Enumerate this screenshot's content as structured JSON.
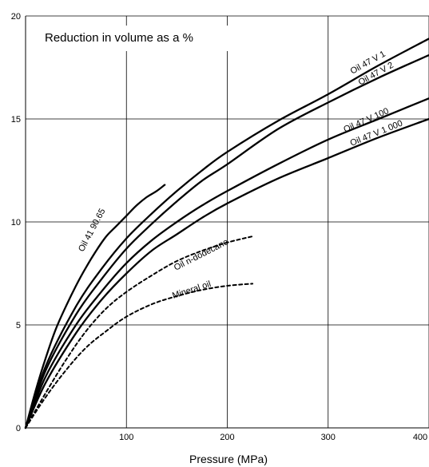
{
  "chart_data": {
    "type": "line",
    "title": "",
    "annotation": "Reduction in volume as a %",
    "xlabel": "Pressure (MPa)",
    "ylabel": "",
    "xlim": [
      0,
      400
    ],
    "ylim": [
      0,
      20
    ],
    "x_ticks": [
      "100",
      "200",
      "300",
      "400"
    ],
    "y_ticks": [
      "0",
      "5",
      "10",
      "15",
      "20"
    ],
    "grid": true,
    "series": [
      {
        "name": "Oil 41 90.65",
        "style": "solid",
        "points": [
          [
            0,
            0
          ],
          [
            10,
            1.8
          ],
          [
            20,
            3.4
          ],
          [
            30,
            4.8
          ],
          [
            40,
            5.9
          ],
          [
            50,
            6.9
          ],
          [
            60,
            7.8
          ],
          [
            70,
            8.6
          ],
          [
            80,
            9.3
          ],
          [
            90,
            9.8
          ],
          [
            100,
            10.3
          ],
          [
            110,
            10.8
          ],
          [
            120,
            11.2
          ],
          [
            130,
            11.5
          ],
          [
            138,
            11.8
          ]
        ]
      },
      {
        "name": "Oil 47 V 1",
        "style": "solid",
        "points": [
          [
            0,
            0
          ],
          [
            20,
            3.0
          ],
          [
            50,
            5.9
          ],
          [
            75,
            7.7
          ],
          [
            100,
            9.2
          ],
          [
            125,
            10.4
          ],
          [
            150,
            11.5
          ],
          [
            175,
            12.5
          ],
          [
            200,
            13.4
          ],
          [
            250,
            14.9
          ],
          [
            300,
            16.2
          ],
          [
            350,
            17.6
          ],
          [
            400,
            18.9
          ]
        ]
      },
      {
        "name": "Oil 47 V 2",
        "style": "solid",
        "points": [
          [
            0,
            0
          ],
          [
            20,
            2.8
          ],
          [
            50,
            5.5
          ],
          [
            75,
            7.2
          ],
          [
            100,
            8.7
          ],
          [
            125,
            9.9
          ],
          [
            150,
            11.0
          ],
          [
            175,
            12.0
          ],
          [
            200,
            12.8
          ],
          [
            250,
            14.5
          ],
          [
            300,
            15.8
          ],
          [
            350,
            17.0
          ],
          [
            400,
            18.1
          ]
        ]
      },
      {
        "name": "Oil 47 V 100",
        "style": "solid",
        "points": [
          [
            0,
            0
          ],
          [
            20,
            2.5
          ],
          [
            50,
            5.0
          ],
          [
            75,
            6.6
          ],
          [
            100,
            8.0
          ],
          [
            125,
            9.1
          ],
          [
            150,
            10.0
          ],
          [
            175,
            10.8
          ],
          [
            200,
            11.5
          ],
          [
            250,
            12.8
          ],
          [
            300,
            14.0
          ],
          [
            350,
            15.0
          ],
          [
            400,
            16.0
          ]
        ]
      },
      {
        "name": "Oil 47 V 1 000",
        "style": "solid",
        "points": [
          [
            0,
            0
          ],
          [
            20,
            2.2
          ],
          [
            50,
            4.6
          ],
          [
            75,
            6.2
          ],
          [
            100,
            7.5
          ],
          [
            125,
            8.6
          ],
          [
            150,
            9.4
          ],
          [
            175,
            10.2
          ],
          [
            200,
            10.9
          ],
          [
            250,
            12.1
          ],
          [
            300,
            13.1
          ],
          [
            350,
            14.1
          ],
          [
            400,
            15.0
          ]
        ]
      },
      {
        "name": "Oil n-dodecane",
        "style": "dashed",
        "points": [
          [
            0,
            0
          ],
          [
            20,
            1.7
          ],
          [
            40,
            3.3
          ],
          [
            60,
            4.7
          ],
          [
            80,
            5.8
          ],
          [
            100,
            6.6
          ],
          [
            125,
            7.4
          ],
          [
            150,
            8.1
          ],
          [
            175,
            8.6
          ],
          [
            200,
            9.0
          ],
          [
            225,
            9.3
          ]
        ]
      },
      {
        "name": "Mineral oil",
        "style": "dashed",
        "points": [
          [
            0,
            0
          ],
          [
            20,
            1.5
          ],
          [
            40,
            2.8
          ],
          [
            60,
            3.9
          ],
          [
            80,
            4.7
          ],
          [
            100,
            5.4
          ],
          [
            125,
            6.0
          ],
          [
            150,
            6.4
          ],
          [
            175,
            6.7
          ],
          [
            200,
            6.9
          ],
          [
            225,
            7.0
          ]
        ]
      }
    ]
  }
}
